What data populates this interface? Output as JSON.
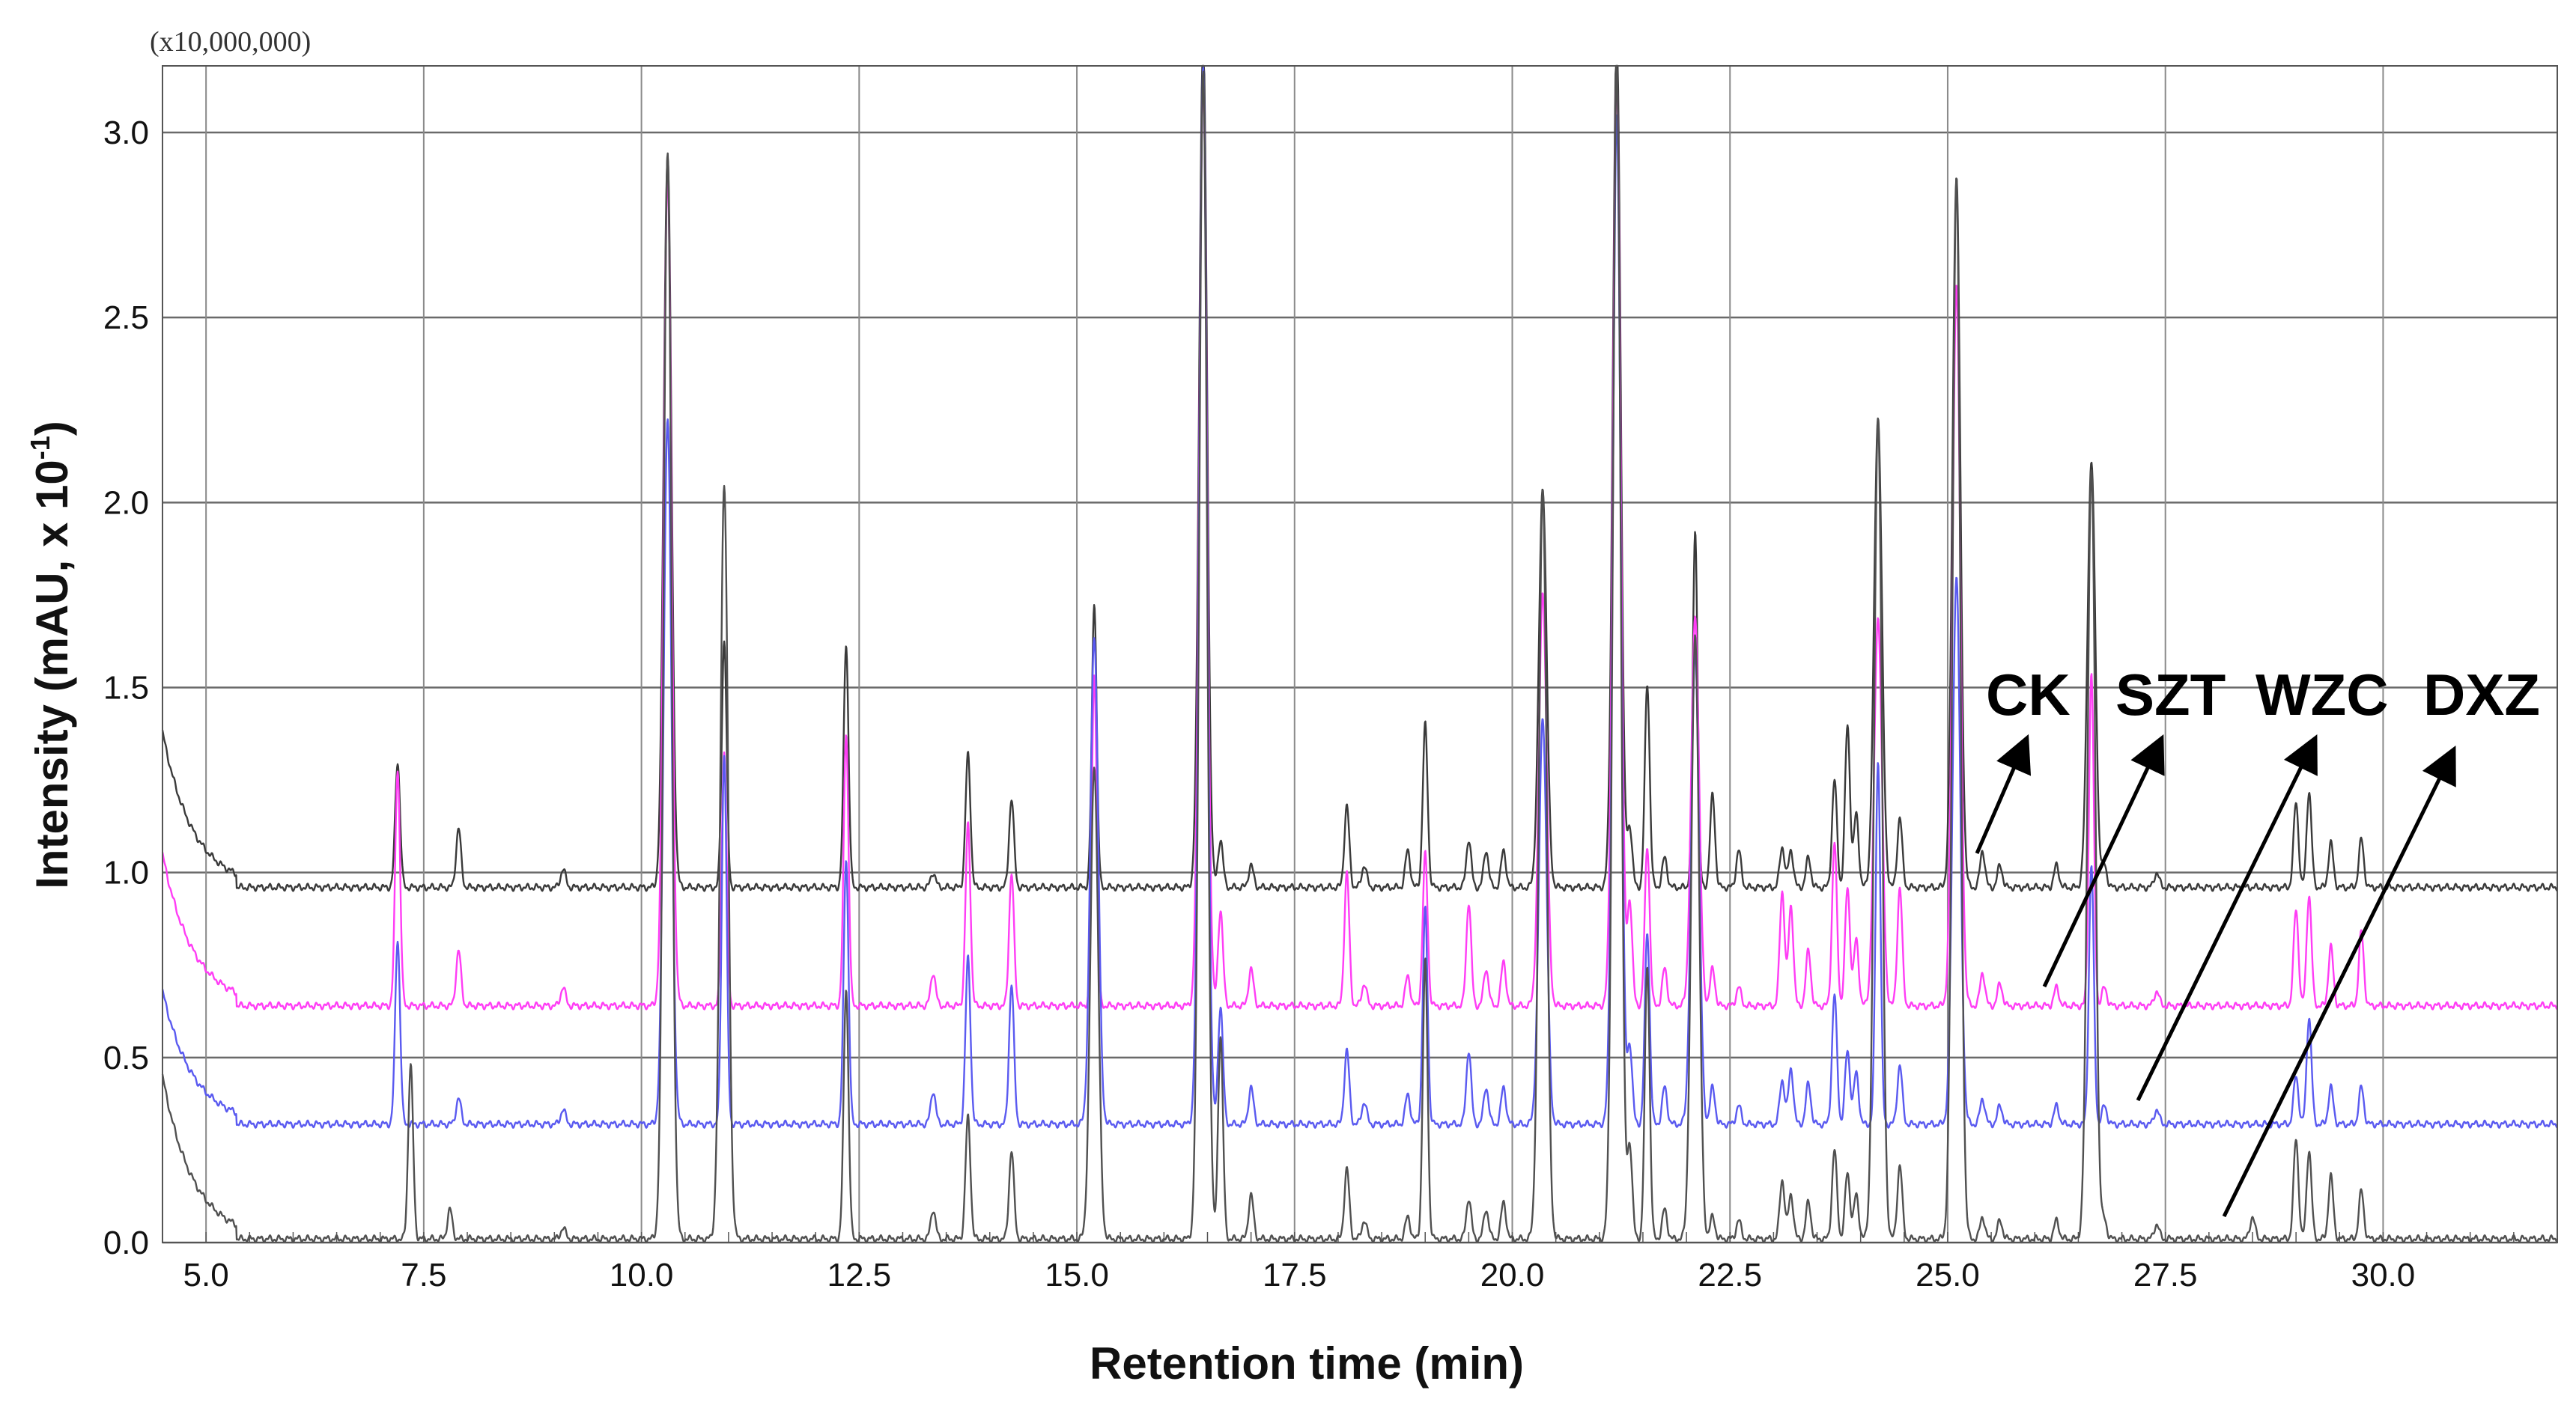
{
  "chart_data": {
    "type": "line",
    "title": "",
    "multiplier": "(x10,000,000)",
    "xlabel": "Retention time (min)",
    "ylabel": "Intensity (mAU, x 10",
    "ylabel_sup": "-1",
    "ylabel_close": ")",
    "xlim": [
      4.5,
      32.0
    ],
    "ylim": [
      0.0,
      3.18
    ],
    "xticks": [
      "5.0",
      "7.5",
      "10.0",
      "12.5",
      "15.0",
      "17.5",
      "20.0",
      "22.5",
      "25.0",
      "27.5",
      "30.0"
    ],
    "yticks": [
      "0.0",
      "0.5",
      "1.0",
      "1.5",
      "2.0",
      "2.5",
      "3.0"
    ],
    "grid": true,
    "series": [
      {
        "name": "CK",
        "color": "#3a3a3a",
        "baseline": 0.96,
        "start_hump": 1.38,
        "peaks": [
          [
            7.2,
            0.34
          ],
          [
            7.9,
            0.16
          ],
          [
            9.1,
            0.05
          ],
          [
            10.3,
            1.98
          ],
          [
            10.95,
            0.67
          ],
          [
            12.35,
            0.66
          ],
          [
            13.35,
            0.04
          ],
          [
            13.75,
            0.36
          ],
          [
            14.25,
            0.24
          ],
          [
            15.2,
            0.77
          ],
          [
            16.45,
            2.3
          ],
          [
            16.65,
            0.13
          ],
          [
            17.0,
            0.06
          ],
          [
            18.1,
            0.22
          ],
          [
            18.3,
            0.06
          ],
          [
            18.8,
            0.1
          ],
          [
            19.0,
            0.44
          ],
          [
            19.5,
            0.13
          ],
          [
            19.7,
            0.1
          ],
          [
            19.9,
            0.1
          ],
          [
            20.35,
            1.08
          ],
          [
            21.2,
            2.3
          ],
          [
            21.35,
            0.16
          ],
          [
            21.55,
            0.55
          ],
          [
            21.75,
            0.08
          ],
          [
            22.1,
            0.96
          ],
          [
            22.3,
            0.25
          ],
          [
            22.6,
            0.1
          ],
          [
            23.1,
            0.11
          ],
          [
            23.2,
            0.1
          ],
          [
            23.4,
            0.08
          ],
          [
            23.7,
            0.29
          ],
          [
            23.85,
            0.44
          ],
          [
            23.95,
            0.2
          ],
          [
            24.2,
            1.27
          ],
          [
            24.45,
            0.19
          ],
          [
            25.1,
            1.92
          ],
          [
            25.4,
            0.1
          ],
          [
            25.6,
            0.06
          ],
          [
            26.25,
            0.06
          ],
          [
            26.65,
            1.15
          ],
          [
            26.8,
            0.06
          ],
          [
            27.4,
            0.04
          ],
          [
            29.0,
            0.23
          ],
          [
            29.15,
            0.26
          ],
          [
            29.4,
            0.12
          ],
          [
            29.75,
            0.13
          ]
        ]
      },
      {
        "name": "SZT",
        "color": "#ff3df5",
        "baseline": 0.64,
        "start_hump": 1.05,
        "peaks": [
          [
            7.2,
            0.64
          ],
          [
            7.9,
            0.15
          ],
          [
            9.1,
            0.05
          ],
          [
            10.3,
            2.25
          ],
          [
            10.95,
            0.69
          ],
          [
            12.35,
            0.74
          ],
          [
            13.35,
            0.09
          ],
          [
            13.75,
            0.49
          ],
          [
            14.25,
            0.36
          ],
          [
            15.2,
            0.9
          ],
          [
            16.45,
            2.5
          ],
          [
            16.65,
            0.26
          ],
          [
            17.0,
            0.1
          ],
          [
            18.1,
            0.36
          ],
          [
            18.3,
            0.06
          ],
          [
            18.8,
            0.08
          ],
          [
            19.0,
            0.41
          ],
          [
            19.5,
            0.28
          ],
          [
            19.7,
            0.1
          ],
          [
            19.9,
            0.12
          ],
          [
            20.35,
            1.12
          ],
          [
            21.2,
            2.5
          ],
          [
            21.35,
            0.28
          ],
          [
            21.55,
            0.43
          ],
          [
            21.75,
            0.1
          ],
          [
            22.1,
            1.05
          ],
          [
            22.3,
            0.1
          ],
          [
            22.6,
            0.05
          ],
          [
            23.1,
            0.31
          ],
          [
            23.2,
            0.27
          ],
          [
            23.4,
            0.15
          ],
          [
            23.7,
            0.44
          ],
          [
            23.85,
            0.32
          ],
          [
            23.95,
            0.18
          ],
          [
            24.2,
            1.05
          ],
          [
            24.45,
            0.32
          ],
          [
            25.1,
            1.95
          ],
          [
            25.4,
            0.09
          ],
          [
            25.6,
            0.06
          ],
          [
            26.25,
            0.05
          ],
          [
            26.65,
            0.9
          ],
          [
            26.8,
            0.05
          ],
          [
            27.4,
            0.04
          ],
          [
            29.0,
            0.26
          ],
          [
            29.15,
            0.3
          ],
          [
            29.4,
            0.16
          ],
          [
            29.75,
            0.2
          ]
        ]
      },
      {
        "name": "WZC",
        "color": "#5a5af0",
        "baseline": 0.32,
        "start_hump": 0.68,
        "peaks": [
          [
            7.2,
            0.5
          ],
          [
            7.9,
            0.07
          ],
          [
            9.1,
            0.04
          ],
          [
            10.3,
            1.91
          ],
          [
            10.95,
            1.0
          ],
          [
            12.35,
            0.72
          ],
          [
            13.35,
            0.09
          ],
          [
            13.75,
            0.45
          ],
          [
            14.25,
            0.38
          ],
          [
            15.2,
            1.32
          ],
          [
            16.45,
            2.86
          ],
          [
            16.65,
            0.32
          ],
          [
            17.0,
            0.1
          ],
          [
            18.1,
            0.2
          ],
          [
            18.3,
            0.06
          ],
          [
            18.8,
            0.08
          ],
          [
            19.0,
            0.58
          ],
          [
            19.5,
            0.2
          ],
          [
            19.7,
            0.1
          ],
          [
            19.9,
            0.1
          ],
          [
            20.35,
            1.1
          ],
          [
            21.2,
            2.72
          ],
          [
            21.35,
            0.21
          ],
          [
            21.55,
            0.52
          ],
          [
            21.75,
            0.1
          ],
          [
            22.1,
            1.28
          ],
          [
            22.3,
            0.1
          ],
          [
            22.6,
            0.05
          ],
          [
            23.1,
            0.12
          ],
          [
            23.2,
            0.15
          ],
          [
            23.4,
            0.11
          ],
          [
            23.7,
            0.35
          ],
          [
            23.85,
            0.2
          ],
          [
            23.95,
            0.14
          ],
          [
            24.2,
            0.98
          ],
          [
            24.45,
            0.16
          ],
          [
            25.1,
            1.48
          ],
          [
            25.4,
            0.07
          ],
          [
            25.6,
            0.05
          ],
          [
            26.25,
            0.05
          ],
          [
            26.65,
            0.7
          ],
          [
            26.8,
            0.05
          ],
          [
            27.4,
            0.04
          ],
          [
            29.0,
            0.13
          ],
          [
            29.15,
            0.29
          ],
          [
            29.4,
            0.1
          ],
          [
            29.75,
            0.1
          ]
        ]
      },
      {
        "name": "DXZ",
        "color": "#505050",
        "baseline": 0.01,
        "start_hump": 0.45,
        "peaks": [
          [
            7.35,
            0.47
          ],
          [
            7.8,
            0.08
          ],
          [
            9.1,
            0.03
          ],
          [
            10.3,
            2.94
          ],
          [
            10.95,
            2.04
          ],
          [
            12.35,
            0.68
          ],
          [
            13.35,
            0.08
          ],
          [
            13.75,
            0.33
          ],
          [
            14.25,
            0.24
          ],
          [
            15.2,
            1.28
          ],
          [
            16.45,
            3.16
          ],
          [
            16.65,
            0.55
          ],
          [
            17.0,
            0.12
          ],
          [
            18.1,
            0.19
          ],
          [
            18.3,
            0.05
          ],
          [
            18.8,
            0.06
          ],
          [
            19.0,
            0.75
          ],
          [
            19.5,
            0.11
          ],
          [
            19.7,
            0.08
          ],
          [
            19.9,
            0.1
          ],
          [
            20.35,
            2.03
          ],
          [
            21.2,
            3.16
          ],
          [
            21.35,
            0.25
          ],
          [
            21.55,
            0.74
          ],
          [
            21.75,
            0.08
          ],
          [
            22.1,
            1.63
          ],
          [
            22.3,
            0.06
          ],
          [
            22.6,
            0.05
          ],
          [
            23.1,
            0.16
          ],
          [
            23.2,
            0.12
          ],
          [
            23.4,
            0.1
          ],
          [
            23.7,
            0.24
          ],
          [
            23.85,
            0.18
          ],
          [
            23.95,
            0.12
          ],
          [
            24.2,
            2.22
          ],
          [
            24.45,
            0.2
          ],
          [
            25.1,
            2.87
          ],
          [
            25.4,
            0.06
          ],
          [
            25.6,
            0.05
          ],
          [
            26.25,
            0.05
          ],
          [
            26.65,
            2.08
          ],
          [
            26.8,
            0.05
          ],
          [
            27.4,
            0.04
          ],
          [
            28.5,
            0.06
          ],
          [
            29.0,
            0.27
          ],
          [
            29.15,
            0.24
          ],
          [
            29.4,
            0.17
          ],
          [
            29.75,
            0.13
          ]
        ]
      }
    ],
    "labels": [
      "CK",
      "SZT",
      "WZC",
      "DXZ"
    ]
  }
}
